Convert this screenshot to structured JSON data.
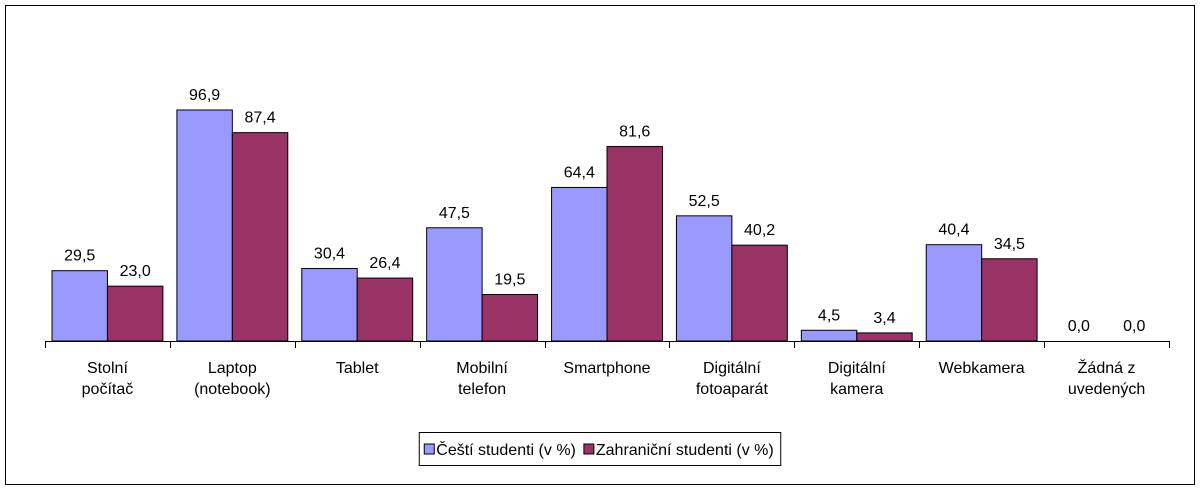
{
  "chart_data": {
    "type": "bar",
    "categories": [
      "Stolní\npočítač",
      "Laptop\n(notebook)",
      "Tablet",
      "Mobilní\ntelefon",
      "Smartphone",
      "Digitální\nfotoaparát",
      "Digitální\nkamera",
      "Webkamera",
      "Žádná z\nuvedených"
    ],
    "series": [
      {
        "name": "Čeští studenti (v %)",
        "color": "#9999ff",
        "values": [
          29.5,
          96.9,
          30.4,
          47.5,
          64.4,
          52.5,
          4.5,
          40.4,
          0.0
        ],
        "value_labels": [
          "29,5",
          "96,9",
          "30,4",
          "47,5",
          "64,4",
          "52,5",
          "4,5",
          "40,4",
          "0,0"
        ]
      },
      {
        "name": "Zahraniční studenti (v %)",
        "color": "#993366",
        "values": [
          23.0,
          87.4,
          26.4,
          19.5,
          81.6,
          40.2,
          3.4,
          34.5,
          0.0
        ],
        "value_labels": [
          "23,0",
          "87,4",
          "26,4",
          "19,5",
          "81,6",
          "40,2",
          "3,4",
          "34,5",
          "0,0"
        ]
      }
    ],
    "ylim": [
      0,
      100
    ],
    "legend": "bottom"
  }
}
